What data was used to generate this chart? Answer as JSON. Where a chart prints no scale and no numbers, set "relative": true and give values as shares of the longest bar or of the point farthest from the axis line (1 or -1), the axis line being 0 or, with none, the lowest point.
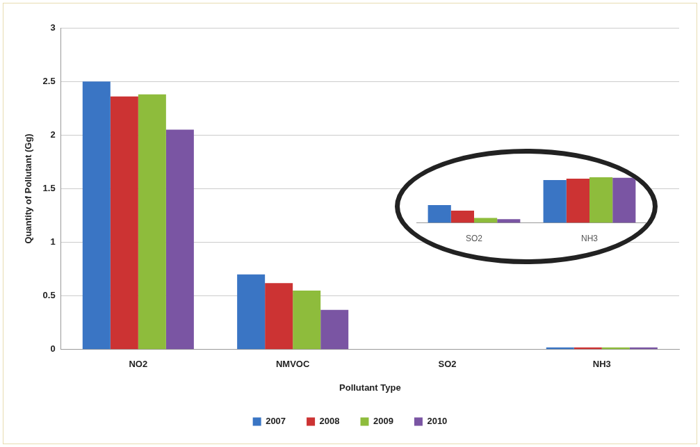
{
  "chart_data": [
    {
      "type": "bar",
      "xlabel": "Pollutant Type",
      "ylabel": "Quantity of Pollutant (Gg)",
      "categories": [
        "NO2",
        "NMVOC",
        "SO2",
        "NH3"
      ],
      "series": [
        {
          "name": "2007",
          "color": "#3a75c4",
          "values": [
            2.5,
            0.7,
            null,
            0.02
          ]
        },
        {
          "name": "2008",
          "color": "#cc3333",
          "values": [
            2.36,
            0.62,
            null,
            0.02
          ]
        },
        {
          "name": "2009",
          "color": "#8ebc3c",
          "values": [
            2.38,
            0.55,
            null,
            0.02
          ]
        },
        {
          "name": "2010",
          "color": "#7a55a3",
          "values": [
            2.05,
            0.37,
            null,
            0.02
          ]
        }
      ],
      "ylim": [
        0,
        3
      ],
      "yticks": [
        0,
        0.5,
        1,
        1.5,
        2,
        2.5,
        3
      ],
      "grid": "y",
      "legend": "bottom"
    },
    {
      "type": "bar",
      "relative": true,
      "categories": [
        "SO2",
        "NH3"
      ],
      "series": [
        {
          "color": "#3a75c4",
          "values": [
            0.39,
            0.94
          ]
        },
        {
          "color": "#cc3333",
          "values": [
            0.27,
            0.97
          ]
        },
        {
          "color": "#8ebc3c",
          "values": [
            0.11,
            1.0
          ]
        },
        {
          "color": "#7a55a3",
          "values": [
            0.08,
            0.99
          ]
        }
      ],
      "grid": false,
      "legend": false
    }
  ]
}
